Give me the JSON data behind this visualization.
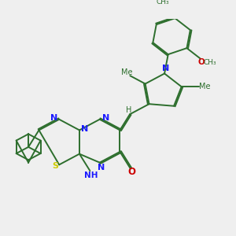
{
  "bg_color": "#efefef",
  "bond_color": "#2d6e2d",
  "bond_width": 1.4,
  "N_color": "#1a1aff",
  "O_color": "#cc0000",
  "S_color": "#cccc00",
  "text_color": "#2d6e2d",
  "figsize": [
    3.0,
    3.0
  ],
  "dpi": 100,
  "xlim": [
    0,
    10
  ],
  "ylim": [
    0,
    10
  ]
}
